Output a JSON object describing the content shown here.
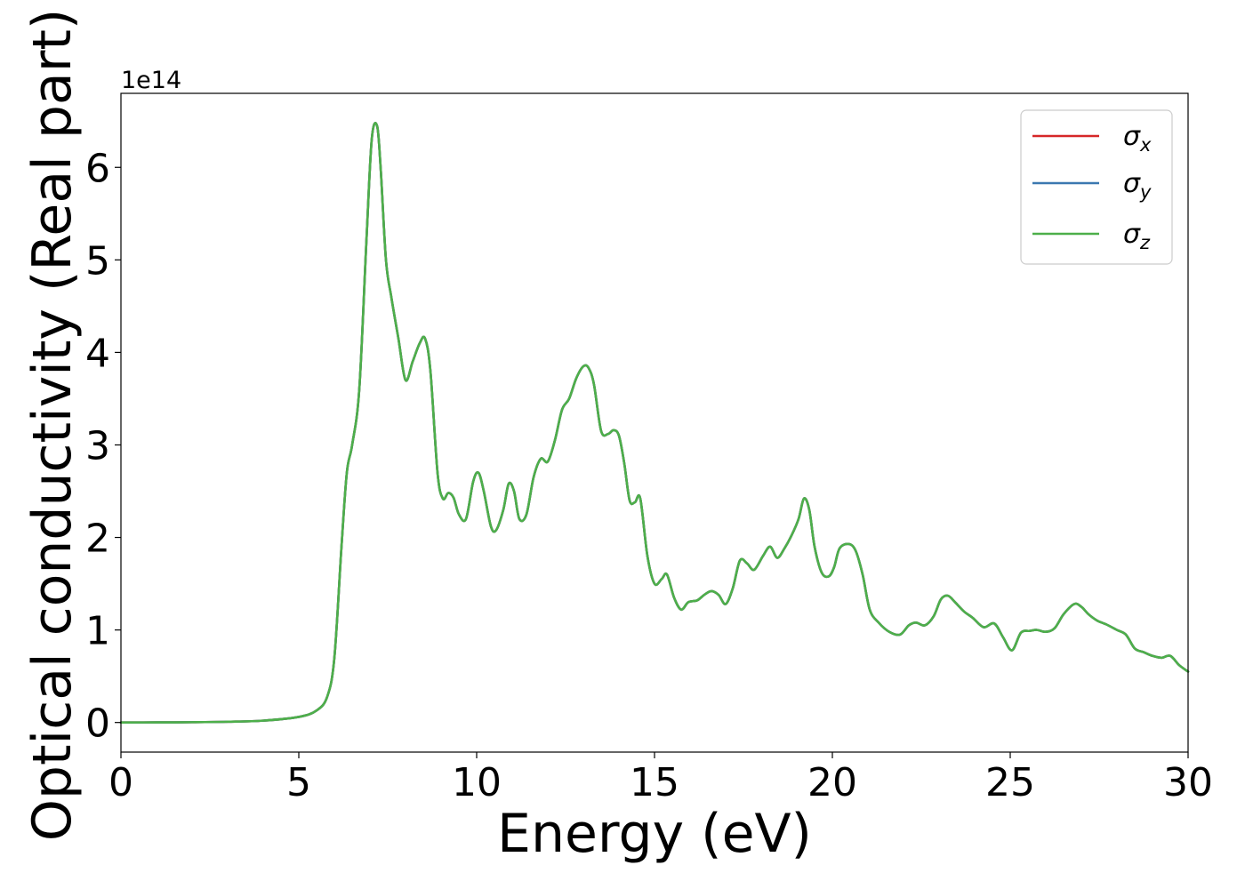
{
  "chart_data": {
    "type": "line",
    "xlabel": "Energy (eV)",
    "ylabel": "Optical conductivity (Real part)",
    "y_offset_label": "1e14",
    "xlim": [
      0,
      30
    ],
    "ylim": [
      -0.32,
      6.8
    ],
    "x_ticks": [
      0,
      5,
      10,
      15,
      20,
      25,
      30
    ],
    "y_ticks": [
      0,
      1,
      2,
      3,
      4,
      5,
      6
    ],
    "grid": false,
    "legend_position": "top-right",
    "series": [
      {
        "name": "σ",
        "subscript": "x",
        "color": "#d62728"
      },
      {
        "name": "σ",
        "subscript": "y",
        "color": "#3b78b0"
      },
      {
        "name": "σ",
        "subscript": "z",
        "color": "#4daf4a"
      }
    ],
    "x": [
      0,
      1,
      2,
      3,
      4,
      5,
      5.5,
      5.8,
      6.0,
      6.2,
      6.35,
      6.5,
      6.7,
      6.9,
      7.05,
      7.2,
      7.3,
      7.45,
      7.6,
      7.8,
      8.0,
      8.2,
      8.4,
      8.55,
      8.7,
      8.9,
      9.05,
      9.2,
      9.35,
      9.5,
      9.7,
      9.9,
      10.05,
      10.2,
      10.4,
      10.55,
      10.75,
      10.9,
      11.05,
      11.2,
      11.4,
      11.6,
      11.8,
      12.0,
      12.2,
      12.4,
      12.6,
      12.8,
      13.0,
      13.15,
      13.3,
      13.5,
      13.7,
      13.85,
      14.0,
      14.15,
      14.3,
      14.45,
      14.6,
      14.8,
      15.0,
      15.2,
      15.35,
      15.55,
      15.75,
      15.95,
      16.2,
      16.4,
      16.6,
      16.8,
      17.0,
      17.2,
      17.4,
      17.6,
      17.8,
      18.05,
      18.25,
      18.45,
      18.65,
      18.85,
      19.05,
      19.2,
      19.35,
      19.5,
      19.7,
      19.9,
      20.05,
      20.2,
      20.45,
      20.65,
      20.85,
      21.05,
      21.3,
      21.6,
      21.9,
      22.15,
      22.35,
      22.6,
      22.85,
      23.05,
      23.25,
      23.45,
      23.7,
      23.95,
      24.25,
      24.55,
      24.8,
      25.05,
      25.3,
      25.55,
      25.75,
      26.0,
      26.25,
      26.5,
      26.8,
      27.0,
      27.2,
      27.45,
      27.7,
      28.0,
      28.25,
      28.5,
      28.75,
      29.0,
      29.25,
      29.5,
      29.75,
      30.0
    ],
    "y": [
      0.0,
      0.001,
      0.003,
      0.008,
      0.02,
      0.06,
      0.13,
      0.28,
      0.7,
      1.9,
      2.7,
      3.0,
      3.6,
      5.2,
      6.3,
      6.45,
      6.0,
      5.0,
      4.6,
      4.15,
      3.7,
      3.9,
      4.1,
      4.15,
      3.8,
      2.7,
      2.42,
      2.48,
      2.43,
      2.25,
      2.2,
      2.6,
      2.7,
      2.5,
      2.12,
      2.08,
      2.3,
      2.58,
      2.5,
      2.2,
      2.25,
      2.65,
      2.85,
      2.82,
      3.05,
      3.38,
      3.5,
      3.72,
      3.85,
      3.83,
      3.65,
      3.15,
      3.12,
      3.16,
      3.1,
      2.8,
      2.4,
      2.38,
      2.42,
      1.8,
      1.5,
      1.55,
      1.6,
      1.35,
      1.22,
      1.3,
      1.32,
      1.38,
      1.42,
      1.38,
      1.28,
      1.45,
      1.75,
      1.72,
      1.65,
      1.8,
      1.9,
      1.78,
      1.88,
      2.02,
      2.2,
      2.42,
      2.3,
      1.9,
      1.62,
      1.58,
      1.68,
      1.88,
      1.93,
      1.86,
      1.6,
      1.22,
      1.08,
      0.98,
      0.95,
      1.05,
      1.08,
      1.05,
      1.15,
      1.33,
      1.37,
      1.3,
      1.2,
      1.13,
      1.03,
      1.07,
      0.92,
      0.78,
      0.97,
      0.99,
      1.0,
      0.98,
      1.02,
      1.17,
      1.28,
      1.25,
      1.17,
      1.1,
      1.06,
      1.0,
      0.95,
      0.8,
      0.76,
      0.72,
      0.7,
      0.72,
      0.62,
      0.55
    ]
  }
}
